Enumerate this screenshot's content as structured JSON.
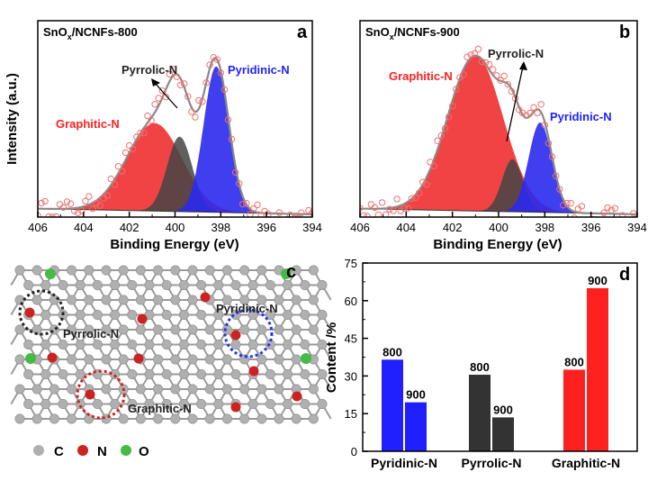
{
  "colors": {
    "pyridinic": "#1f1fff",
    "pyrrolic": "#333333",
    "graphitic": "#ff2020",
    "pyridinic_fill": "#2a2aee",
    "pyrrolic_fill": "#444444",
    "graphitic_fill": "#ee2222",
    "raw_point": "#f07070",
    "fit_line": "#888888",
    "carbon": "#b0b0b0",
    "nitrogen": "#cc2222",
    "oxygen": "#44bb44"
  },
  "chart_data": [
    {
      "panel": "a",
      "type": "line",
      "title": "SnOx/NCNFs-800",
      "title_main": "SnO",
      "title_sub": "x",
      "title_rest": "/NCNFs-800",
      "xlabel": "Binding Energy (eV)",
      "ylabel": "Intensity (a.u.)",
      "xlim": [
        406,
        394
      ],
      "ylim": [
        0,
        1.05
      ],
      "xticks": [
        "406",
        "404",
        "402",
        "400",
        "398",
        "396",
        "394"
      ],
      "baseline": [
        0.045,
        0.015
      ],
      "series": [
        {
          "name": "Graphitic-N",
          "center": 400.9,
          "height": 0.47,
          "width": 1.2
        },
        {
          "name": "Pyrrolic-N",
          "center": 399.8,
          "height": 0.4,
          "width": 0.55
        },
        {
          "name": "Pyridinic-N",
          "center": 398.2,
          "height": 0.78,
          "width": 0.55
        }
      ],
      "labels": {
        "graphitic": "Graphitic-N",
        "pyrrolic": "Pyrrolic-N",
        "pyridinic": "Pyridinic-N"
      }
    },
    {
      "panel": "b",
      "type": "line",
      "title": "SnOx/NCNFs-900",
      "title_main": "SnO",
      "title_sub": "x",
      "title_rest": "/NCNFs-900",
      "xlabel": "Binding Energy (eV)",
      "ylabel": "",
      "xlim": [
        406,
        394
      ],
      "ylim": [
        0,
        1.05
      ],
      "xticks": [
        "406",
        "404",
        "402",
        "400",
        "398",
        "396",
        "394"
      ],
      "baseline": [
        0.045,
        0.015
      ],
      "series": [
        {
          "name": "Graphitic-N",
          "center": 401.0,
          "height": 0.83,
          "width": 1.2
        },
        {
          "name": "Pyrrolic-N",
          "center": 399.4,
          "height": 0.28,
          "width": 0.45
        },
        {
          "name": "Pyridinic-N",
          "center": 398.2,
          "height": 0.48,
          "width": 0.5
        }
      ],
      "labels": {
        "graphitic": "Graphitic-N",
        "pyrrolic": "Pyrrolic-N",
        "pyridinic": "Pyridinic-N"
      }
    },
    {
      "panel": "d",
      "type": "bar",
      "categories": [
        "Pyridinic-N",
        "Pyrrolic-N",
        "Graphitic-N"
      ],
      "series": [
        {
          "name": "800",
          "values": [
            36.5,
            30.5,
            32.5
          ]
        },
        {
          "name": "900",
          "values": [
            19.5,
            13.5,
            65
          ]
        }
      ],
      "ylabel": "Content /%",
      "ylim": [
        0,
        75
      ],
      "yticks": [
        "0",
        "15",
        "30",
        "45",
        "60",
        "75"
      ]
    }
  ],
  "panel_c": {
    "letter": "c",
    "labels": {
      "pyrrolic": "Pyrrolic-N",
      "pyridinic": "Pyridinic-N",
      "graphitic": "Graphitic-N"
    },
    "legend": [
      "C",
      "N",
      "O"
    ]
  },
  "panel_letters": {
    "a": "a",
    "b": "b",
    "d": "d"
  }
}
